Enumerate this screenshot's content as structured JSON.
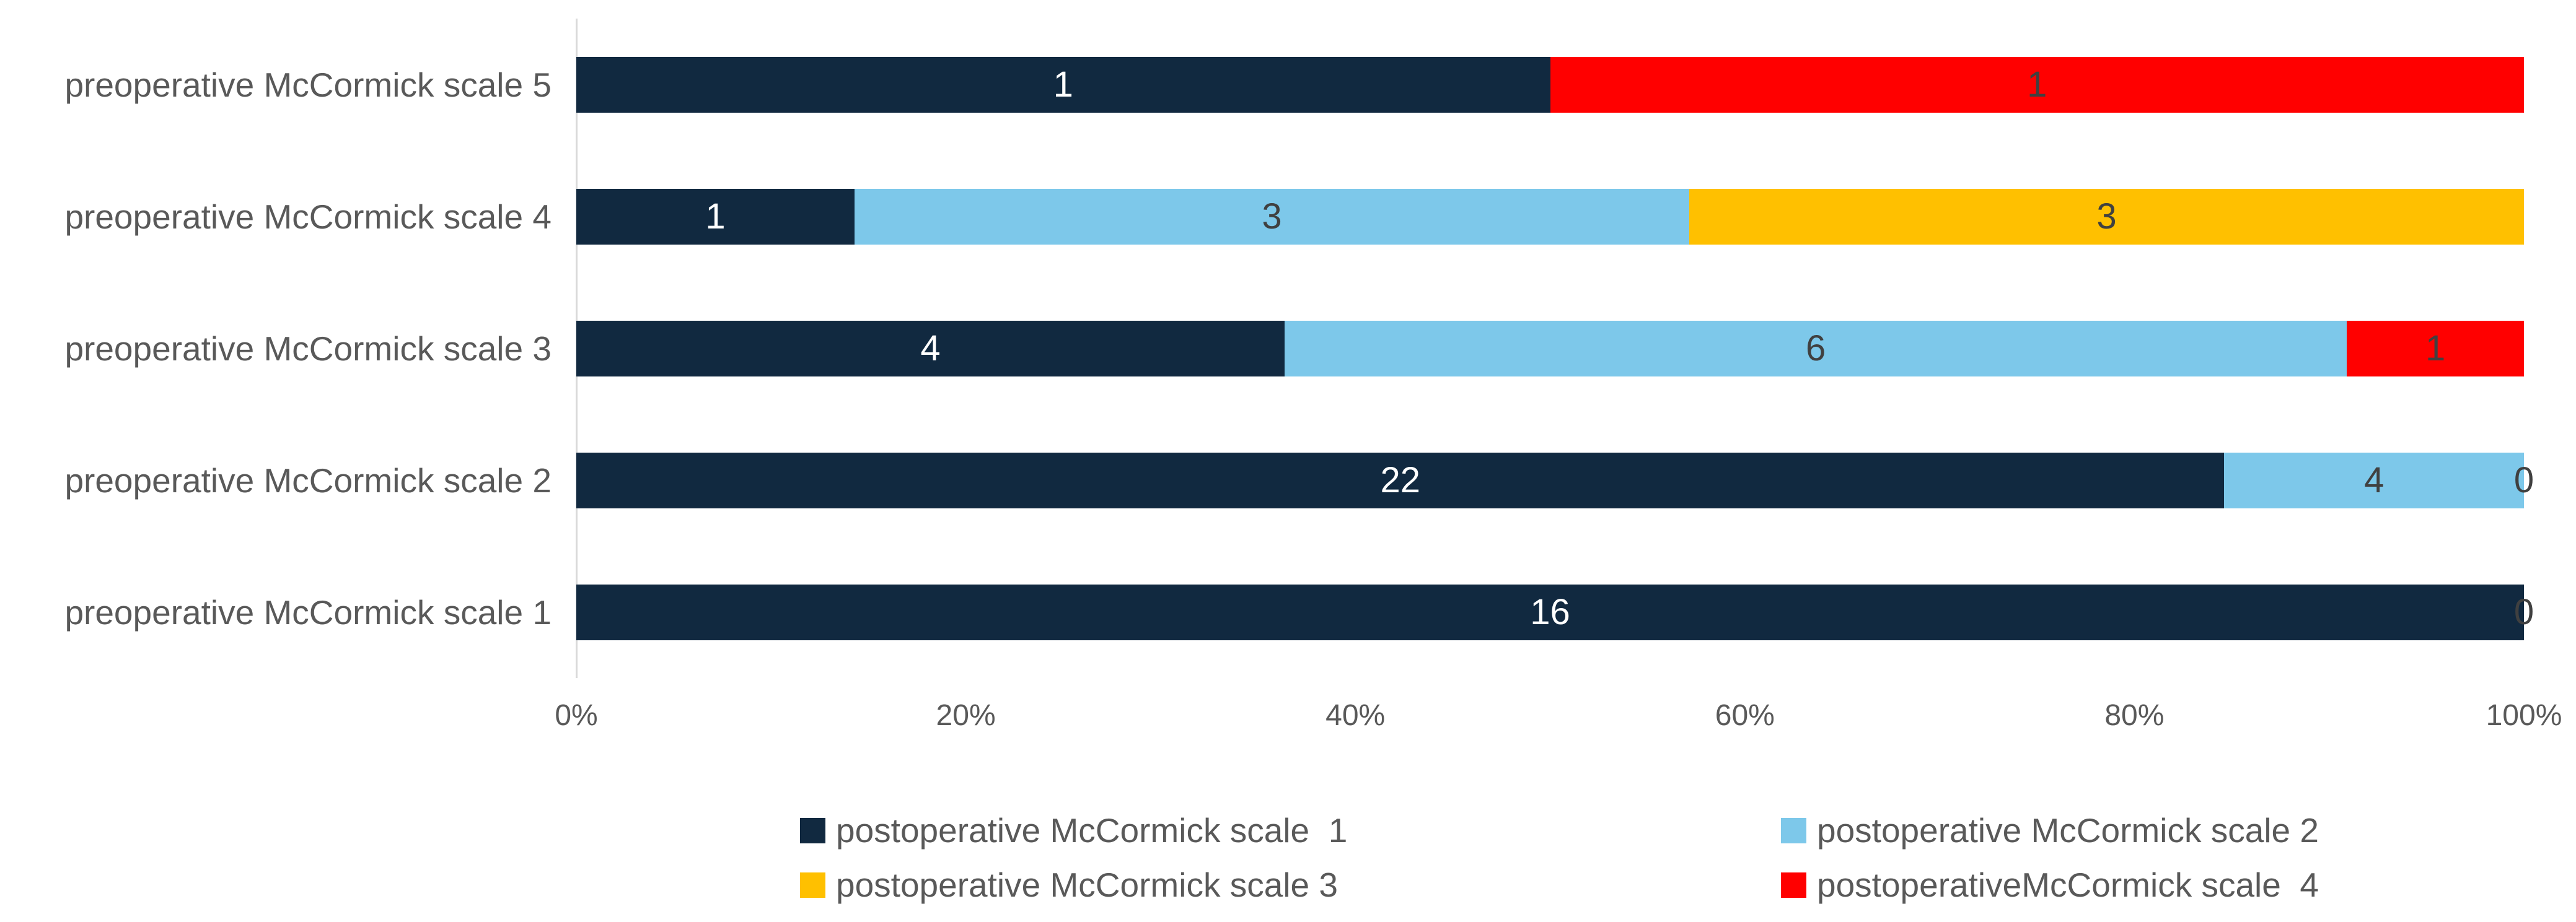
{
  "chart_data": {
    "type": "bar",
    "orientation": "horizontal",
    "stack_mode": "percent",
    "title": "",
    "categories": [
      "preoperative McCormick scale 5",
      "preoperative McCormick scale 4",
      "preoperative McCormick scale 3",
      "preoperative McCormick scale 2",
      "preoperative McCormick scale 1"
    ],
    "series": [
      {
        "name": "postoperative McCormick scale  1",
        "color": "#112940",
        "values": [
          1,
          1,
          4,
          22,
          16
        ]
      },
      {
        "name": "postoperative McCormick scale 2",
        "color": "#7DC8EA",
        "values": [
          0,
          3,
          6,
          4,
          0
        ]
      },
      {
        "name": "postoperative McCormick scale 3",
        "color": "#FFC000",
        "values": [
          0,
          3,
          0,
          0,
          0
        ]
      },
      {
        "name": "postoperativeMcCormick scale  4",
        "color": "#FF0000",
        "values": [
          1,
          0,
          1,
          0,
          0
        ]
      }
    ],
    "x_axis": {
      "tick_labels": [
        "0%",
        "20%",
        "40%",
        "60%",
        "80%",
        "100%"
      ],
      "range": [
        0,
        100
      ],
      "grid": false
    },
    "value_labels": {
      "show_nonzero": true,
      "zero_text": "0",
      "trailing_zero_rows": [
        3,
        4
      ]
    },
    "colors": {
      "label_on_dark": "#FFFFFF",
      "label_on_light": "#404040",
      "axis_text": "#595959",
      "category_text": "#595959",
      "axis_line": "#D9D9D9",
      "background": "#FFFFFF"
    },
    "legend": {
      "position": "bottom",
      "columns": 2,
      "order": [
        0,
        1,
        2,
        3
      ]
    }
  }
}
